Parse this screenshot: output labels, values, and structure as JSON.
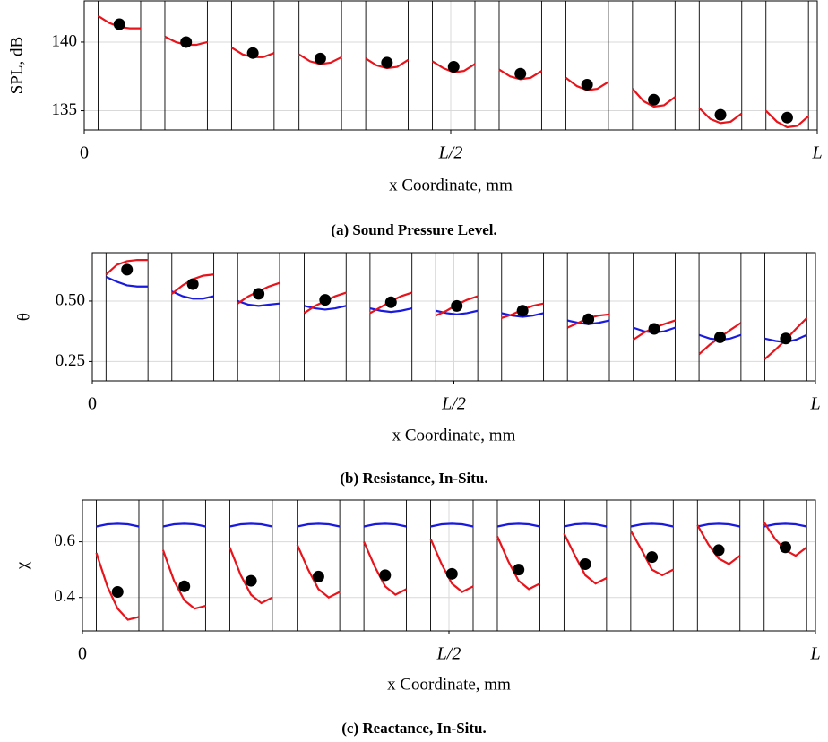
{
  "chart_data": [
    {
      "type": "line",
      "title": "(a) Sound Pressure Level.",
      "xlabel": "x Coordinate, mm",
      "ylabel": "SPL, dB",
      "xlim": [
        0,
        1
      ],
      "xticks": [
        {
          "value": 0,
          "label": "0"
        },
        {
          "value": 0.5,
          "label": "L/2"
        },
        {
          "value": 1,
          "label": "L"
        }
      ],
      "ylim": [
        133.6,
        143.0
      ],
      "yticks": [
        135,
        140
      ],
      "grid": true,
      "vlines": [
        0.019,
        0.077,
        0.11,
        0.168,
        0.201,
        0.259,
        0.293,
        0.351,
        0.384,
        0.442,
        0.475,
        0.533,
        0.566,
        0.624,
        0.657,
        0.715,
        0.748,
        0.806,
        0.839,
        0.897,
        0.93,
        0.988
      ],
      "x": [
        0.019,
        0.034,
        0.048,
        0.062,
        0.077,
        null,
        0.11,
        0.125,
        0.139,
        0.153,
        0.168,
        null,
        0.201,
        0.216,
        0.23,
        0.244,
        0.259,
        null,
        0.293,
        0.308,
        0.322,
        0.336,
        0.351,
        null,
        0.384,
        0.399,
        0.413,
        0.427,
        0.442,
        null,
        0.475,
        0.49,
        0.504,
        0.518,
        0.533,
        null,
        0.566,
        0.581,
        0.595,
        0.609,
        0.624,
        null,
        0.657,
        0.672,
        0.686,
        0.7,
        0.715,
        null,
        0.748,
        0.763,
        0.777,
        0.791,
        0.806,
        null,
        0.839,
        0.854,
        0.868,
        0.882,
        0.897,
        null,
        0.93,
        0.945,
        0.959,
        0.973,
        0.988
      ],
      "series": [
        {
          "color": "#e8141c",
          "values": [
            141.9,
            141.4,
            141.1,
            141.0,
            141.0,
            null,
            140.4,
            140.0,
            139.8,
            139.8,
            140.0,
            null,
            139.6,
            139.1,
            138.9,
            138.9,
            139.2,
            null,
            139.1,
            138.6,
            138.4,
            138.5,
            138.9,
            null,
            138.8,
            138.3,
            138.1,
            138.2,
            138.7,
            null,
            138.6,
            138.1,
            137.8,
            137.9,
            138.4,
            null,
            138.0,
            137.5,
            137.3,
            137.4,
            137.9,
            null,
            137.4,
            136.8,
            136.5,
            136.6,
            137.1,
            null,
            136.6,
            135.7,
            135.3,
            135.4,
            136.0,
            null,
            135.2,
            134.4,
            134.1,
            134.2,
            134.8,
            null,
            135.0,
            134.2,
            133.8,
            133.9,
            134.6
          ]
        }
      ],
      "points": {
        "color": "#000000",
        "x": [
          0.048,
          0.139,
          0.23,
          0.322,
          0.413,
          0.504,
          0.595,
          0.686,
          0.777,
          0.868,
          0.959
        ],
        "values": [
          141.3,
          140.0,
          139.2,
          138.8,
          138.5,
          138.2,
          137.7,
          136.9,
          135.8,
          134.7,
          134.5
        ]
      }
    },
    {
      "type": "line",
      "title": "(b) Resistance, In-Situ.",
      "xlabel": "x Coordinate, mm",
      "ylabel": "θ",
      "xlim": [
        0,
        1
      ],
      "xticks": [
        {
          "value": 0,
          "label": "0"
        },
        {
          "value": 0.5,
          "label": "L/2"
        },
        {
          "value": 1,
          "label": "L"
        }
      ],
      "ylim": [
        0.17,
        0.7
      ],
      "yticks": [
        0.25,
        {
          "value": 0.5,
          "label": "0.50"
        }
      ],
      "grid": true,
      "vlines": [
        0.019,
        0.077,
        0.11,
        0.168,
        0.201,
        0.259,
        0.293,
        0.351,
        0.384,
        0.442,
        0.475,
        0.533,
        0.566,
        0.624,
        0.657,
        0.715,
        0.748,
        0.806,
        0.839,
        0.897,
        0.93,
        0.988
      ],
      "x": [
        0.019,
        0.034,
        0.048,
        0.062,
        0.077,
        null,
        0.11,
        0.125,
        0.139,
        0.153,
        0.168,
        null,
        0.201,
        0.216,
        0.23,
        0.244,
        0.259,
        null,
        0.293,
        0.308,
        0.322,
        0.336,
        0.351,
        null,
        0.384,
        0.399,
        0.413,
        0.427,
        0.442,
        null,
        0.475,
        0.49,
        0.504,
        0.518,
        0.533,
        null,
        0.566,
        0.581,
        0.595,
        0.609,
        0.624,
        null,
        0.657,
        0.672,
        0.686,
        0.7,
        0.715,
        null,
        0.748,
        0.763,
        0.777,
        0.791,
        0.806,
        null,
        0.839,
        0.854,
        0.868,
        0.882,
        0.897,
        null,
        0.93,
        0.945,
        0.959,
        0.973,
        0.988
      ],
      "series": [
        {
          "color": "#1a1adf",
          "values": [
            0.6,
            0.58,
            0.565,
            0.56,
            0.56,
            null,
            0.54,
            0.52,
            0.51,
            0.51,
            0.52,
            null,
            0.5,
            0.485,
            0.48,
            0.485,
            0.49,
            null,
            0.48,
            0.47,
            0.465,
            0.47,
            0.48,
            null,
            0.47,
            0.46,
            0.455,
            0.46,
            0.47,
            null,
            0.46,
            0.45,
            0.445,
            0.45,
            0.46,
            null,
            0.45,
            0.44,
            0.435,
            0.44,
            0.45,
            null,
            0.42,
            0.41,
            0.405,
            0.41,
            0.42,
            null,
            0.39,
            0.375,
            0.37,
            0.375,
            0.39,
            null,
            0.36,
            0.345,
            0.34,
            0.345,
            0.36,
            null,
            0.345,
            0.335,
            0.33,
            0.34,
            0.36
          ]
        },
        {
          "color": "#e8141c",
          "values": [
            0.61,
            0.65,
            0.665,
            0.67,
            0.67,
            null,
            0.53,
            0.565,
            0.59,
            0.605,
            0.61,
            null,
            0.49,
            0.52,
            0.54,
            0.56,
            0.575,
            null,
            0.45,
            0.48,
            0.5,
            0.52,
            0.535,
            null,
            0.45,
            0.475,
            0.5,
            0.52,
            0.535,
            null,
            0.44,
            0.46,
            0.485,
            0.505,
            0.52,
            null,
            0.43,
            0.445,
            0.465,
            0.48,
            0.49,
            null,
            0.39,
            0.41,
            0.43,
            0.44,
            0.445,
            null,
            0.34,
            0.37,
            0.39,
            0.405,
            0.42,
            null,
            0.28,
            0.32,
            0.35,
            0.38,
            0.41,
            null,
            0.26,
            0.3,
            0.34,
            0.385,
            0.43
          ]
        }
      ],
      "points": {
        "color": "#000000",
        "x": [
          0.048,
          0.139,
          0.23,
          0.322,
          0.413,
          0.504,
          0.595,
          0.686,
          0.777,
          0.868,
          0.959
        ],
        "values": [
          0.63,
          0.57,
          0.53,
          0.505,
          0.495,
          0.48,
          0.46,
          0.425,
          0.385,
          0.35,
          0.345
        ]
      }
    },
    {
      "type": "line",
      "title": "(c) Reactance, In-Situ.",
      "xlabel": "x Coordinate, mm",
      "ylabel": "χ",
      "xlim": [
        0,
        1
      ],
      "xticks": [
        {
          "value": 0,
          "label": "0"
        },
        {
          "value": 0.5,
          "label": "L/2"
        },
        {
          "value": 1,
          "label": "L"
        }
      ],
      "ylim": [
        0.28,
        0.75
      ],
      "yticks": [
        0.4,
        0.6
      ],
      "grid": true,
      "vlines": [
        0.019,
        0.077,
        0.11,
        0.168,
        0.201,
        0.259,
        0.293,
        0.351,
        0.384,
        0.442,
        0.475,
        0.533,
        0.566,
        0.624,
        0.657,
        0.715,
        0.748,
        0.806,
        0.839,
        0.897,
        0.93,
        0.988
      ],
      "x": [
        0.019,
        0.034,
        0.048,
        0.062,
        0.077,
        null,
        0.11,
        0.125,
        0.139,
        0.153,
        0.168,
        null,
        0.201,
        0.216,
        0.23,
        0.244,
        0.259,
        null,
        0.293,
        0.308,
        0.322,
        0.336,
        0.351,
        null,
        0.384,
        0.399,
        0.413,
        0.427,
        0.442,
        null,
        0.475,
        0.49,
        0.504,
        0.518,
        0.533,
        null,
        0.566,
        0.581,
        0.595,
        0.609,
        0.624,
        null,
        0.657,
        0.672,
        0.686,
        0.7,
        0.715,
        null,
        0.748,
        0.763,
        0.777,
        0.791,
        0.806,
        null,
        0.839,
        0.854,
        0.868,
        0.882,
        0.897,
        null,
        0.93,
        0.945,
        0.959,
        0.973,
        0.988
      ],
      "series": [
        {
          "color": "#1a1adf",
          "values": [
            0.655,
            0.663,
            0.665,
            0.663,
            0.655,
            null,
            0.655,
            0.663,
            0.665,
            0.663,
            0.655,
            null,
            0.655,
            0.663,
            0.665,
            0.663,
            0.655,
            null,
            0.655,
            0.663,
            0.665,
            0.663,
            0.655,
            null,
            0.655,
            0.663,
            0.665,
            0.663,
            0.655,
            null,
            0.655,
            0.663,
            0.665,
            0.663,
            0.655,
            null,
            0.655,
            0.663,
            0.665,
            0.663,
            0.655,
            null,
            0.655,
            0.663,
            0.665,
            0.663,
            0.655,
            null,
            0.655,
            0.663,
            0.665,
            0.663,
            0.655,
            null,
            0.655,
            0.663,
            0.665,
            0.663,
            0.655,
            null,
            0.655,
            0.663,
            0.665,
            0.663,
            0.655
          ]
        },
        {
          "color": "#e8141c",
          "values": [
            0.56,
            0.44,
            0.36,
            0.32,
            0.33,
            null,
            0.57,
            0.46,
            0.39,
            0.36,
            0.37,
            null,
            0.58,
            0.48,
            0.41,
            0.38,
            0.4,
            null,
            0.59,
            0.5,
            0.43,
            0.4,
            0.42,
            null,
            0.6,
            0.51,
            0.44,
            0.41,
            0.43,
            null,
            0.61,
            0.52,
            0.45,
            0.42,
            0.44,
            null,
            0.62,
            0.53,
            0.46,
            0.43,
            0.45,
            null,
            0.63,
            0.55,
            0.48,
            0.45,
            0.47,
            null,
            0.64,
            0.57,
            0.5,
            0.48,
            0.5,
            null,
            0.66,
            0.59,
            0.54,
            0.52,
            0.55,
            null,
            0.67,
            0.61,
            0.57,
            0.55,
            0.58
          ]
        }
      ],
      "points": {
        "color": "#000000",
        "x": [
          0.048,
          0.139,
          0.23,
          0.322,
          0.413,
          0.504,
          0.595,
          0.686,
          0.777,
          0.868,
          0.959
        ],
        "values": [
          0.42,
          0.44,
          0.46,
          0.475,
          0.48,
          0.485,
          0.5,
          0.52,
          0.545,
          0.57,
          0.58
        ]
      }
    }
  ]
}
